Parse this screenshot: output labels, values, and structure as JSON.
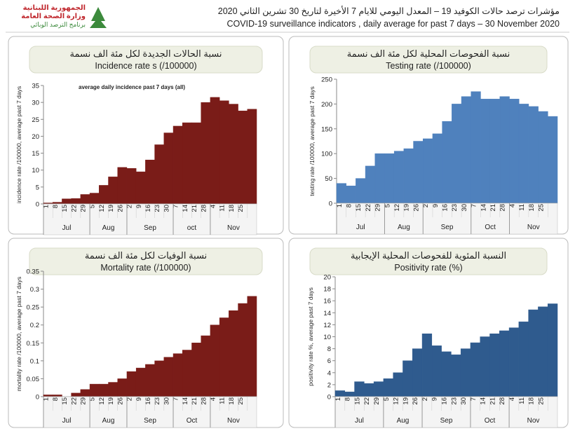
{
  "header": {
    "logo_lines": [
      "الجمهورية اللبنانية",
      "وزارة الصحة العامة",
      "برنامج الترصد الوبائي"
    ],
    "title_ar": "مؤشرات ترصد حالات الكوفيد 19 – المعدل اليومي للايام 7 الأخيرة لتاريخ 30 تشرين الثاني 2020",
    "title_en": "COVID-19 surveillance indicators , daily average for past 7 days – 30 November 2020"
  },
  "chart_data": [
    {
      "type": "bar",
      "title": "نسبة الحالات الجديدة لكل مئة الف نسمة",
      "subtitle": "Incidence rate s  (/100000)",
      "annotation": "average daily incidence past 7 days (all)",
      "y_label": "incidence rate /100000, average past 7 days",
      "categories": [
        "1",
        "8",
        "15",
        "22",
        "29",
        "5",
        "12",
        "19",
        "26",
        "2",
        "9",
        "16",
        "23",
        "30",
        "7",
        "14",
        "21",
        "28",
        "4",
        "11",
        "18",
        "25",
        null
      ],
      "months": [
        "Jul",
        "Aug",
        "Sep",
        "oct",
        "Nov"
      ],
      "values": [
        0.3,
        0.5,
        1.5,
        1.6,
        2.8,
        3.2,
        5.5,
        8,
        10.8,
        10.5,
        9.5,
        13,
        17.5,
        21,
        23,
        24,
        24,
        30,
        31.5,
        30.5,
        29.5,
        27.5,
        28
      ],
      "color": "#7a1c18",
      "ylim": [
        0,
        35
      ],
      "yticks": [
        0,
        5,
        10,
        15,
        20,
        25,
        30,
        35
      ]
    },
    {
      "type": "bar",
      "title": "نسبة الفحوصات المحلية لكل مئة الف نسمة",
      "subtitle": "Testing rate (/100000)",
      "y_label": "testing rate /100000, average past 7 days",
      "categories": [
        "1",
        "8",
        "15",
        "22",
        "29",
        "5",
        "12",
        "19",
        "26",
        "2",
        "9",
        "16",
        "23",
        "30",
        "7",
        "14",
        "21",
        "28",
        "4",
        "11",
        "18",
        "25",
        null
      ],
      "months": [
        "Jul",
        "Aug",
        "Sep",
        "Oct",
        "Nov"
      ],
      "values": [
        40,
        35,
        50,
        75,
        100,
        100,
        105,
        110,
        125,
        130,
        140,
        165,
        200,
        215,
        225,
        210,
        210,
        215,
        210,
        200,
        195,
        185,
        175
      ],
      "color": "#4f81bd",
      "ylim": [
        0,
        250
      ],
      "yticks": [
        0,
        50,
        100,
        150,
        200,
        250
      ]
    },
    {
      "type": "bar",
      "title": "نسبة الوفيات لكل مئة الف نسمة",
      "subtitle": "Mortality rate (/100000)",
      "y_label": "mortality rate /100000, average past 7 days",
      "categories": [
        "1",
        "8",
        "15",
        "22",
        "29",
        "5",
        "12",
        "19",
        "26",
        "2",
        "9",
        "16",
        "23",
        "30",
        "7",
        "14",
        "21",
        "28",
        "4",
        "11",
        "18",
        "25",
        null
      ],
      "months": [
        "Jul",
        "Aug",
        "Sep",
        "Oct",
        "Nov"
      ],
      "values": [
        0.005,
        0.005,
        0,
        0.01,
        0.02,
        0.035,
        0.035,
        0.04,
        0.05,
        0.07,
        0.08,
        0.09,
        0.1,
        0.11,
        0.12,
        0.13,
        0.15,
        0.17,
        0.2,
        0.22,
        0.24,
        0.26,
        0.28
      ],
      "color": "#7a1c18",
      "ylim": [
        0,
        0.35
      ],
      "yticks": [
        0,
        0.05,
        0.1,
        0.15,
        0.2,
        0.25,
        0.3,
        0.35
      ]
    },
    {
      "type": "bar",
      "title": "النسبة المئوية للفحوصات المحلية الإيجابية",
      "subtitle": "Positivity rate (%)",
      "y_label": "positivity rate %, average past 7 days",
      "categories": [
        "1",
        "8",
        "15",
        "22",
        "29",
        "5",
        "12",
        "19",
        "26",
        "2",
        "9",
        "16",
        "23",
        "30",
        "7",
        "14",
        "21",
        "28",
        "4",
        "11",
        "18",
        "25",
        null
      ],
      "months": [
        "Jul",
        "Aug",
        "Sep",
        "Oct",
        "Nov"
      ],
      "values": [
        1,
        0.8,
        2.5,
        2.2,
        2.5,
        3,
        4,
        6,
        8,
        10.5,
        8.5,
        7.5,
        7,
        8,
        9,
        10,
        10.5,
        11,
        11.5,
        12.5,
        14.5,
        15,
        15.5
      ],
      "color": "#2f5b8e",
      "ylim": [
        0,
        20
      ],
      "yticks": [
        0,
        2,
        4,
        6,
        8,
        10,
        12,
        14,
        16,
        18,
        20
      ]
    }
  ]
}
